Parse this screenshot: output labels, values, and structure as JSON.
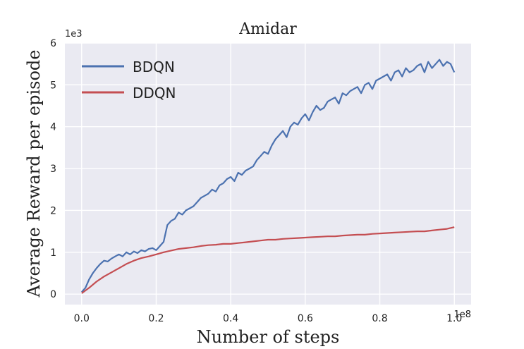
{
  "chart_data": {
    "type": "line",
    "title": "Amidar",
    "xlabel": "Number of steps",
    "ylabel": "Average Reward per episode",
    "x_multiplier_label": "1e8",
    "y_multiplier_label": "1e3",
    "xlim": [
      -0.045,
      1.045
    ],
    "ylim": [
      -0.25,
      6.0
    ],
    "x_ticks": [
      0.0,
      0.2,
      0.4,
      0.6,
      0.8,
      1.0
    ],
    "x_tick_labels": [
      "0.0",
      "0.2",
      "0.4",
      "0.6",
      "0.8",
      "1.0"
    ],
    "y_ticks": [
      0,
      1,
      2,
      3,
      4,
      5,
      6
    ],
    "y_tick_labels": [
      "0",
      "1",
      "2",
      "3",
      "4",
      "5",
      "6"
    ],
    "grid": true,
    "legend_position": "top-left",
    "series": [
      {
        "name": "BDQN",
        "color": "#4c72b0",
        "x": [
          0.0,
          0.01,
          0.02,
          0.03,
          0.04,
          0.05,
          0.06,
          0.07,
          0.08,
          0.09,
          0.1,
          0.11,
          0.12,
          0.13,
          0.14,
          0.15,
          0.16,
          0.17,
          0.18,
          0.19,
          0.2,
          0.21,
          0.22,
          0.23,
          0.24,
          0.25,
          0.26,
          0.27,
          0.28,
          0.29,
          0.3,
          0.31,
          0.32,
          0.33,
          0.34,
          0.35,
          0.36,
          0.37,
          0.38,
          0.39,
          0.4,
          0.41,
          0.42,
          0.43,
          0.44,
          0.45,
          0.46,
          0.47,
          0.48,
          0.49,
          0.5,
          0.51,
          0.52,
          0.53,
          0.54,
          0.55,
          0.56,
          0.57,
          0.58,
          0.59,
          0.6,
          0.61,
          0.62,
          0.63,
          0.64,
          0.65,
          0.66,
          0.67,
          0.68,
          0.69,
          0.7,
          0.71,
          0.72,
          0.73,
          0.74,
          0.75,
          0.76,
          0.77,
          0.78,
          0.79,
          0.8,
          0.81,
          0.82,
          0.83,
          0.84,
          0.85,
          0.86,
          0.87,
          0.88,
          0.89,
          0.9,
          0.91,
          0.92,
          0.93,
          0.94,
          0.95,
          0.96,
          0.97,
          0.98,
          0.99,
          1.0
        ],
        "values": [
          0.05,
          0.15,
          0.35,
          0.5,
          0.62,
          0.72,
          0.8,
          0.78,
          0.85,
          0.9,
          0.95,
          0.9,
          1.0,
          0.95,
          1.02,
          0.98,
          1.05,
          1.02,
          1.08,
          1.1,
          1.05,
          1.15,
          1.25,
          1.65,
          1.75,
          1.8,
          1.95,
          1.9,
          2.0,
          2.05,
          2.1,
          2.2,
          2.3,
          2.35,
          2.4,
          2.5,
          2.45,
          2.6,
          2.65,
          2.75,
          2.8,
          2.7,
          2.9,
          2.85,
          2.95,
          3.0,
          3.05,
          3.2,
          3.3,
          3.4,
          3.35,
          3.55,
          3.7,
          3.8,
          3.9,
          3.75,
          4.0,
          4.1,
          4.05,
          4.2,
          4.3,
          4.15,
          4.35,
          4.5,
          4.4,
          4.45,
          4.6,
          4.65,
          4.7,
          4.55,
          4.8,
          4.75,
          4.85,
          4.9,
          4.95,
          4.8,
          5.0,
          5.05,
          4.9,
          5.1,
          5.15,
          5.2,
          5.25,
          5.1,
          5.3,
          5.35,
          5.2,
          5.4,
          5.3,
          5.35,
          5.45,
          5.5,
          5.3,
          5.55,
          5.4,
          5.5,
          5.6,
          5.45,
          5.55,
          5.5,
          5.3
        ]
      },
      {
        "name": "DDQN",
        "color": "#c44e52",
        "x": [
          0.0,
          0.02,
          0.04,
          0.06,
          0.08,
          0.1,
          0.12,
          0.14,
          0.16,
          0.18,
          0.2,
          0.22,
          0.24,
          0.26,
          0.28,
          0.3,
          0.32,
          0.34,
          0.36,
          0.38,
          0.4,
          0.42,
          0.44,
          0.46,
          0.48,
          0.5,
          0.52,
          0.54,
          0.56,
          0.58,
          0.6,
          0.62,
          0.64,
          0.66,
          0.68,
          0.7,
          0.72,
          0.74,
          0.76,
          0.78,
          0.8,
          0.82,
          0.84,
          0.86,
          0.88,
          0.9,
          0.92,
          0.94,
          0.96,
          0.98,
          1.0
        ],
        "values": [
          0.02,
          0.15,
          0.3,
          0.42,
          0.52,
          0.62,
          0.72,
          0.8,
          0.86,
          0.9,
          0.95,
          1.0,
          1.04,
          1.08,
          1.1,
          1.12,
          1.15,
          1.17,
          1.18,
          1.2,
          1.2,
          1.22,
          1.24,
          1.26,
          1.28,
          1.3,
          1.3,
          1.32,
          1.33,
          1.34,
          1.35,
          1.36,
          1.37,
          1.38,
          1.38,
          1.4,
          1.41,
          1.42,
          1.42,
          1.44,
          1.45,
          1.46,
          1.47,
          1.48,
          1.49,
          1.5,
          1.5,
          1.52,
          1.54,
          1.56,
          1.6
        ]
      }
    ]
  }
}
